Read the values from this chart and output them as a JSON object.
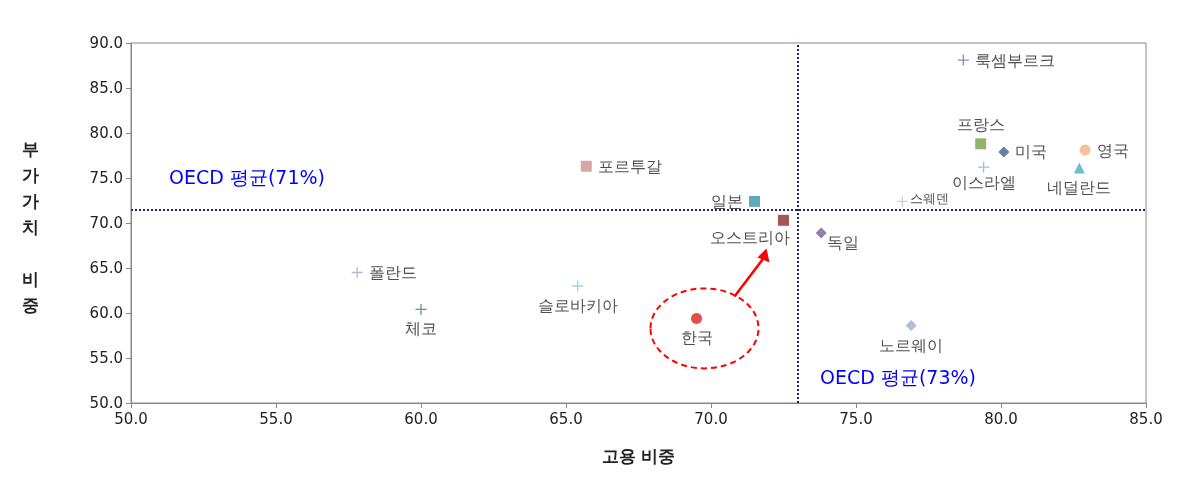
{
  "chart_data": {
    "type": "scatter",
    "xlabel": "고용 비중",
    "ylabel": "부가가치 비중",
    "xlim": [
      50,
      85
    ],
    "ylim": [
      50,
      90
    ],
    "xticks": [
      {
        "value": 50,
        "label": "50.0"
      },
      {
        "value": 55,
        "label": "55.0"
      },
      {
        "value": 60,
        "label": "60.0"
      },
      {
        "value": 65,
        "label": "65.0"
      },
      {
        "value": 70,
        "label": "70.0"
      },
      {
        "value": 75,
        "label": "75.0"
      },
      {
        "value": 80,
        "label": "80.0"
      },
      {
        "value": 85,
        "label": "85.0"
      }
    ],
    "yticks": [
      {
        "value": 50,
        "label": "50.0"
      },
      {
        "value": 55,
        "label": "55.0"
      },
      {
        "value": 60,
        "label": "60.0"
      },
      {
        "value": 65,
        "label": "65.0"
      },
      {
        "value": 70,
        "label": "70.0"
      },
      {
        "value": 75,
        "label": "75.0"
      },
      {
        "value": 80,
        "label": "80.0"
      },
      {
        "value": 85,
        "label": "85.0"
      },
      {
        "value": 90,
        "label": "90.0"
      }
    ],
    "grid": false,
    "legend": false,
    "series": [
      {
        "name": "룩셈부르크",
        "color": "#7f5fa0",
        "marker": "cross",
        "x": [
          78.7
        ],
        "values": [
          88.1
        ]
      },
      {
        "name": "프랑스",
        "color": "#77a04a",
        "marker": "square",
        "x": [
          79.3
        ],
        "values": [
          78.8
        ]
      },
      {
        "name": "미국",
        "color": "#3e5f8f",
        "marker": "diamond",
        "x": [
          80.1
        ],
        "values": [
          77.9
        ]
      },
      {
        "name": "영국",
        "color": "#f4b183",
        "marker": "circle",
        "x": [
          82.9
        ],
        "values": [
          78.1
        ]
      },
      {
        "name": "이스라엘",
        "color": "#8fa8d8",
        "marker": "cross",
        "x": [
          79.4
        ],
        "values": [
          76.2
        ]
      },
      {
        "name": "네덜란드",
        "color": "#4bacc6",
        "marker": "triangle",
        "x": [
          82.7
        ],
        "values": [
          76.1
        ]
      },
      {
        "name": "스웨덴",
        "color": "#c8bfd8",
        "marker": "cross",
        "x": [
          76.6
        ],
        "values": [
          72.4
        ]
      },
      {
        "name": "포르투갈",
        "color": "#d09090",
        "marker": "square",
        "x": [
          65.7
        ],
        "values": [
          76.3
        ]
      },
      {
        "name": "일본",
        "color": "#3a93a8",
        "marker": "square",
        "x": [
          71.5
        ],
        "values": [
          72.4
        ]
      },
      {
        "name": "오스트리아",
        "color": "#8b2e2e",
        "marker": "square",
        "x": [
          72.5
        ],
        "values": [
          70.3
        ]
      },
      {
        "name": "독일",
        "color": "#7a5c99",
        "marker": "diamond",
        "x": [
          73.8
        ],
        "values": [
          68.9
        ]
      },
      {
        "name": "폴란드",
        "color": "#a0a8d0",
        "marker": "cross",
        "x": [
          57.8
        ],
        "values": [
          64.5
        ]
      },
      {
        "name": "체코",
        "color": "#2f7f8a",
        "marker": "cross",
        "x": [
          60.0
        ],
        "values": [
          60.4
        ]
      },
      {
        "name": "슬로바키아",
        "color": "#8cc6d6",
        "marker": "cross",
        "x": [
          65.4
        ],
        "values": [
          63.0
        ]
      },
      {
        "name": "한국",
        "color": "#e02020",
        "marker": "circle",
        "x": [
          69.5
        ],
        "values": [
          59.4
        ]
      },
      {
        "name": "노르웨이",
        "color": "#9aabd4",
        "marker": "diamond",
        "x": [
          76.9
        ],
        "values": [
          58.6
        ]
      }
    ],
    "ref_lines": [
      {
        "axis": "y",
        "value": 71.5,
        "label": "OECD 평균(71%)",
        "color": "#1f1f7a",
        "line_style": "dotted"
      },
      {
        "axis": "x",
        "value": 73.0,
        "label": "OECD 평균(73%)",
        "color": "#1f1f7a",
        "line_style": "dotted"
      }
    ]
  }
}
